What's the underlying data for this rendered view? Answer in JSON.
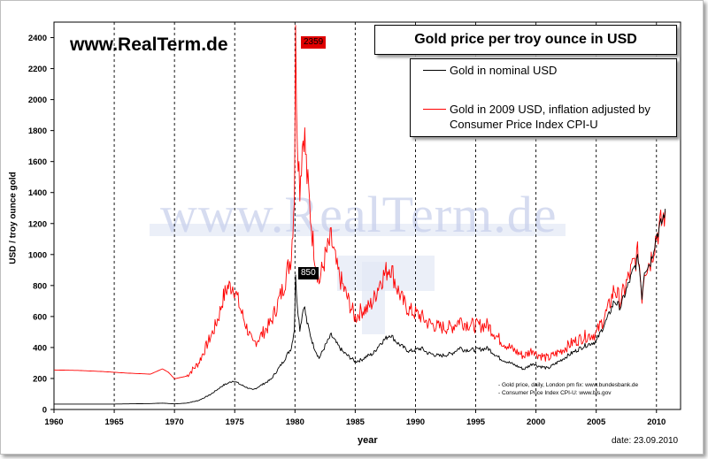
{
  "site_label": "www.RealTerm.de",
  "watermark": "www.RealTerm.de",
  "date_label": "date: 23.09.2010",
  "sources": [
    "- Gold price, daily, London pm fix: www.bundesbank.de",
    "- Consumer Price Index CPI-U: www.bls.gov"
  ],
  "colors": {
    "nominal": "#000000",
    "real": "#ff0000",
    "grid": "#000000"
  },
  "chart_data": {
    "type": "line",
    "title": "Gold price per troy ounce in USD",
    "xlabel": "year",
    "ylabel": "USD / troy ounce gold",
    "xlim": [
      1960,
      2012
    ],
    "ylim": [
      0,
      2500
    ],
    "x_ticks": [
      1960,
      1965,
      1970,
      1975,
      1980,
      1985,
      1990,
      1995,
      2000,
      2005,
      2010
    ],
    "y_ticks": [
      0,
      200,
      400,
      600,
      800,
      1000,
      1200,
      1400,
      1600,
      1800,
      2000,
      2200,
      2400
    ],
    "vertical_grid": "dashed, at each 5-year tick",
    "legend_position": "top-right",
    "annotations": [
      {
        "text": "2359",
        "series": "real",
        "x": 1980.05,
        "y": 2359
      },
      {
        "text": "850",
        "series": "nominal",
        "x": 1980.05,
        "y": 850
      }
    ],
    "series": [
      {
        "name": "Gold in nominal USD",
        "color": "#000000",
        "points": [
          [
            1960,
            35
          ],
          [
            1965,
            35
          ],
          [
            1968,
            38
          ],
          [
            1969,
            41
          ],
          [
            1970,
            36
          ],
          [
            1971,
            41
          ],
          [
            1972,
            58
          ],
          [
            1973,
            97
          ],
          [
            1974,
            154
          ],
          [
            1974.9,
            186
          ],
          [
            1975.5,
            160
          ],
          [
            1976.5,
            125
          ],
          [
            1977,
            148
          ],
          [
            1978,
            193
          ],
          [
            1979,
            306
          ],
          [
            1979.7,
            400
          ],
          [
            1979.95,
            520
          ],
          [
            1980.05,
            850
          ],
          [
            1980.2,
            680
          ],
          [
            1980.4,
            520
          ],
          [
            1980.6,
            610
          ],
          [
            1980.75,
            680
          ],
          [
            1981,
            560
          ],
          [
            1981.5,
            420
          ],
          [
            1982,
            330
          ],
          [
            1982.5,
            410
          ],
          [
            1983,
            480
          ],
          [
            1983.5,
            420
          ],
          [
            1984,
            370
          ],
          [
            1984.5,
            340
          ],
          [
            1985,
            310
          ],
          [
            1985.5,
            320
          ],
          [
            1986,
            345
          ],
          [
            1986.5,
            360
          ],
          [
            1987,
            420
          ],
          [
            1987.9,
            485
          ],
          [
            1988.5,
            430
          ],
          [
            1989,
            400
          ],
          [
            1989.5,
            375
          ],
          [
            1990,
            385
          ],
          [
            1990.5,
            395
          ],
          [
            1991,
            365
          ],
          [
            1992,
            345
          ],
          [
            1993,
            360
          ],
          [
            1993.7,
            400
          ],
          [
            1994,
            385
          ],
          [
            1995,
            385
          ],
          [
            1996,
            395
          ],
          [
            1997,
            330
          ],
          [
            1998,
            295
          ],
          [
            1999,
            260
          ],
          [
            1999.8,
            300
          ],
          [
            2000,
            285
          ],
          [
            2001,
            265
          ],
          [
            2002,
            315
          ],
          [
            2003,
            365
          ],
          [
            2004,
            410
          ],
          [
            2005,
            440
          ],
          [
            2006,
            600
          ],
          [
            2006.5,
            700
          ],
          [
            2007,
            660
          ],
          [
            2008,
            880
          ],
          [
            2008.5,
            980
          ],
          [
            2008.8,
            730
          ],
          [
            2009,
            900
          ],
          [
            2009.5,
            950
          ],
          [
            2010,
            1120
          ],
          [
            2010.5,
            1220
          ],
          [
            2010.73,
            1295
          ]
        ]
      },
      {
        "name": "Gold in 2009 USD, inflation adjusted by Consumer Price Index CPI-U",
        "color": "#ff0000",
        "points": [
          [
            1960,
            255
          ],
          [
            1962,
            252
          ],
          [
            1964,
            245
          ],
          [
            1966,
            235
          ],
          [
            1968,
            228
          ],
          [
            1969,
            262
          ],
          [
            1969.5,
            240
          ],
          [
            1970,
            198
          ],
          [
            1971,
            215
          ],
          [
            1972,
            300
          ],
          [
            1973,
            470
          ],
          [
            1973.3,
            520
          ],
          [
            1973.7,
            610
          ],
          [
            1974,
            710
          ],
          [
            1974.4,
            790
          ],
          [
            1974.9,
            800
          ],
          [
            1975.5,
            640
          ],
          [
            1976.5,
            420
          ],
          [
            1977,
            460
          ],
          [
            1978,
            560
          ],
          [
            1979,
            780
          ],
          [
            1979.7,
            1000
          ],
          [
            1979.95,
            1400
          ],
          [
            1980.05,
            2359
          ],
          [
            1980.2,
            1800
          ],
          [
            1980.4,
            1450
          ],
          [
            1980.6,
            1700
          ],
          [
            1980.75,
            1820
          ],
          [
            1981,
            1500
          ],
          [
            1981.5,
            1080
          ],
          [
            1982,
            820
          ],
          [
            1982.5,
            980
          ],
          [
            1983,
            1100
          ],
          [
            1983.5,
            900
          ],
          [
            1984,
            790
          ],
          [
            1984.5,
            690
          ],
          [
            1985,
            590
          ],
          [
            1985.5,
            640
          ],
          [
            1986,
            650
          ],
          [
            1986.5,
            700
          ],
          [
            1987,
            820
          ],
          [
            1987.9,
            930
          ],
          [
            1988.5,
            780
          ],
          [
            1989,
            690
          ],
          [
            1989.5,
            640
          ],
          [
            1990,
            620
          ],
          [
            1990.5,
            600
          ],
          [
            1991,
            560
          ],
          [
            1992,
            530
          ],
          [
            1993,
            530
          ],
          [
            1993.7,
            580
          ],
          [
            1994,
            560
          ],
          [
            1995,
            540
          ],
          [
            1996,
            545
          ],
          [
            1997,
            450
          ],
          [
            1998,
            390
          ],
          [
            1999,
            345
          ],
          [
            1999.8,
            390
          ],
          [
            2000,
            360
          ],
          [
            2001,
            330
          ],
          [
            2002,
            375
          ],
          [
            2003,
            430
          ],
          [
            2004,
            470
          ],
          [
            2005,
            490
          ],
          [
            2006,
            650
          ],
          [
            2006.5,
            780
          ],
          [
            2007,
            700
          ],
          [
            2008,
            920
          ],
          [
            2008.5,
            1010
          ],
          [
            2008.8,
            730
          ],
          [
            2009,
            910
          ],
          [
            2009.5,
            960
          ],
          [
            2010,
            1125
          ],
          [
            2010.5,
            1220
          ],
          [
            2010.73,
            1280
          ]
        ]
      }
    ]
  }
}
